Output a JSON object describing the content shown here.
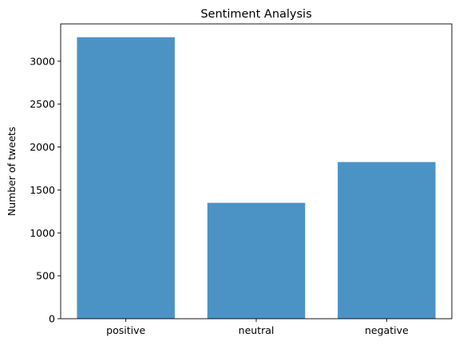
{
  "chart_data": {
    "type": "bar",
    "title": "Sentiment Analysis",
    "xlabel": "",
    "ylabel": "Number of tweets",
    "categories": [
      "positive",
      "neutral",
      "negative"
    ],
    "values": [
      3280,
      1350,
      1825
    ],
    "ylim": [
      0,
      3435
    ],
    "yticks": [
      0,
      500,
      1000,
      1500,
      2000,
      2500,
      3000
    ],
    "bar_color": "#4b93c5",
    "grid": false,
    "legend": "none"
  }
}
